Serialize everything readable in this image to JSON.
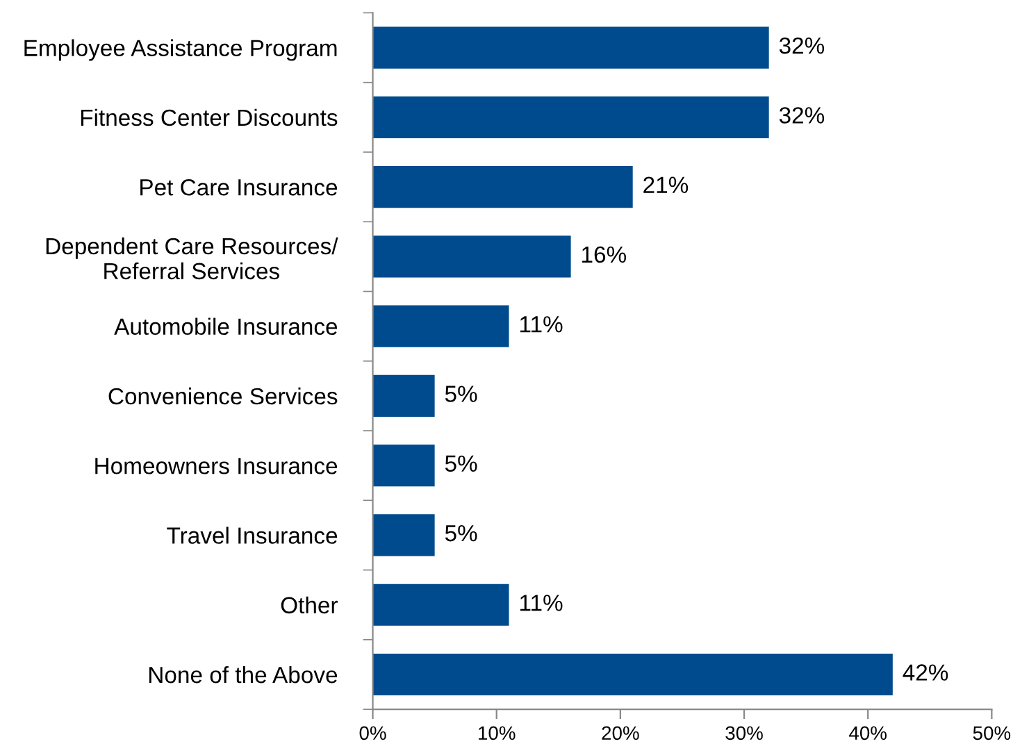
{
  "chart_data": {
    "type": "bar",
    "orientation": "horizontal",
    "categories": [
      "Employee Assistance Program",
      "Fitness Center Discounts",
      "Pet Care Insurance",
      "Dependent Care Resources/\nReferral Services",
      "Automobile Insurance",
      "Convenience Services",
      "Homeowners Insurance",
      "Travel Insurance",
      "Other",
      "None of the Above"
    ],
    "values": [
      32,
      32,
      21,
      16,
      11,
      5,
      5,
      5,
      11,
      42
    ],
    "value_labels": [
      "32%",
      "32%",
      "21%",
      "16%",
      "11%",
      "5%",
      "5%",
      "5%",
      "11%",
      "42%"
    ],
    "color": "#004b8d",
    "xlim": [
      0,
      50
    ],
    "xticks": [
      {
        "value": 0,
        "label": "0%"
      },
      {
        "value": 10,
        "label": "10%"
      },
      {
        "value": 20,
        "label": "20%"
      },
      {
        "value": 30,
        "label": "30%"
      },
      {
        "value": 40,
        "label": "40%"
      },
      {
        "value": 50,
        "label": "50%"
      }
    ],
    "grid": false
  }
}
